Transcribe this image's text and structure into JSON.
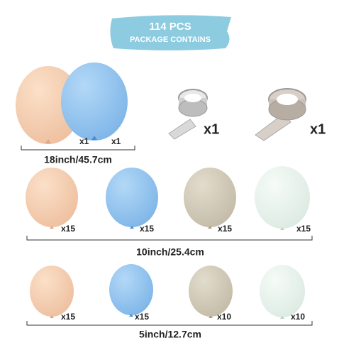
{
  "header": {
    "title": "114 PCS",
    "subtitle": "PACKAGE CONTAINS"
  },
  "rows": [
    {
      "quantities": [
        "x1",
        "x1",
        "x1",
        "x1"
      ],
      "caption": "18inch/45.7cm"
    },
    {
      "quantities": [
        "x15",
        "x15",
        "x15",
        "x15"
      ],
      "caption": "10inch/25.4cm"
    },
    {
      "quantities": [
        "x15",
        "x15",
        "x10",
        "x10"
      ],
      "caption": "5inch/12.7cm"
    }
  ]
}
